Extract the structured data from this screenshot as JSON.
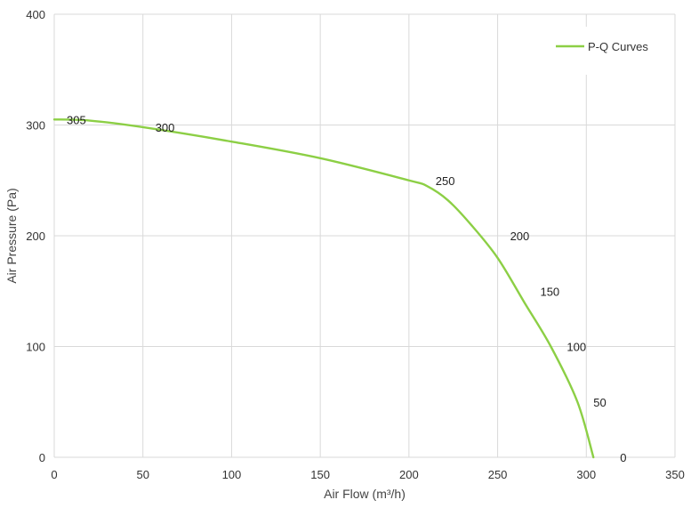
{
  "chart_data": {
    "type": "line",
    "title": "",
    "xlabel": "Air Flow  (m³/h)",
    "ylabel": "Air Pressure  (Pa)",
    "xlim": [
      0,
      350
    ],
    "ylim": [
      0,
      400
    ],
    "x_ticks": [
      "0",
      "50",
      "100",
      "150",
      "200",
      "250",
      "300",
      "350"
    ],
    "y_ticks": [
      "0",
      "100",
      "200",
      "300",
      "400"
    ],
    "grid": true,
    "legend_position": "top-right",
    "color": "#8ccf45",
    "series": [
      {
        "name": "P-Q Curves",
        "x": [
          0,
          20,
          50,
          100,
          150,
          200,
          210,
          222,
          235,
          250,
          265,
          280,
          295,
          304
        ],
        "y": [
          305,
          304,
          298,
          285,
          270,
          250,
          245,
          232,
          210,
          180,
          140,
          100,
          50,
          0
        ]
      }
    ],
    "point_labels": [
      {
        "text": "305",
        "x": 0,
        "y": 305
      },
      {
        "text": "300",
        "x": 50,
        "y": 298
      },
      {
        "text": "250",
        "x": 208,
        "y": 250
      },
      {
        "text": "200",
        "x": 250,
        "y": 200
      },
      {
        "text": "150",
        "x": 267,
        "y": 150
      },
      {
        "text": "100",
        "x": 282,
        "y": 100
      },
      {
        "text": "50",
        "x": 297,
        "y": 50
      },
      {
        "text": "0",
        "x": 312,
        "y": 0
      }
    ]
  }
}
